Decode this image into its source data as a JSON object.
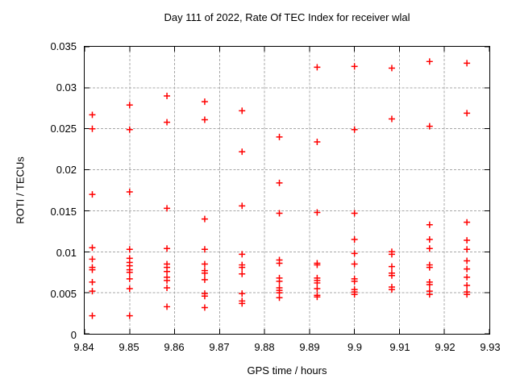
{
  "title": "Day 111 of 2022, Rate Of TEC Index for receiver wlal",
  "chart_data": {
    "type": "scatter",
    "title": "Day 111 of 2022, Rate Of TEC Index for receiver wlal",
    "xlabel": "GPS time / hours",
    "ylabel": "ROTI / TECUs",
    "xlim": [
      9.84,
      9.93
    ],
    "ylim": [
      0,
      0.035
    ],
    "x_ticks": [
      9.84,
      9.85,
      9.86,
      9.87,
      9.88,
      9.89,
      9.9,
      9.91,
      9.92,
      9.93
    ],
    "x_tick_labels": [
      "9.84",
      "9.85",
      "9.86",
      "9.87",
      "9.88",
      "9.89",
      "9.9",
      "9.91",
      "9.92",
      "9.93"
    ],
    "y_ticks": [
      0,
      0.005,
      0.01,
      0.015,
      0.02,
      0.025,
      0.03,
      0.035
    ],
    "y_tick_labels": [
      "0",
      "0.005",
      "0.01",
      "0.015",
      "0.02",
      "0.025",
      "0.03",
      "0.035"
    ],
    "grid": true,
    "legend": "none",
    "marker": {
      "shape": "plus",
      "color": "#ff0000",
      "size": 4,
      "stroke_width": 1.5
    },
    "grid_color": "#a8a8a8",
    "border_color": "#000000",
    "series": [
      {
        "name": "ROTI",
        "points": [
          [
            9.8417,
            0.0267
          ],
          [
            9.8417,
            0.025
          ],
          [
            9.8417,
            0.017
          ],
          [
            9.8417,
            0.0105
          ],
          [
            9.8417,
            0.0091
          ],
          [
            9.8417,
            0.0081
          ],
          [
            9.8417,
            0.0078
          ],
          [
            9.8417,
            0.0063
          ],
          [
            9.8417,
            0.0052
          ],
          [
            9.8417,
            0.0022
          ],
          [
            9.85,
            0.0279
          ],
          [
            9.85,
            0.0249
          ],
          [
            9.85,
            0.0173
          ],
          [
            9.85,
            0.0103
          ],
          [
            9.85,
            0.0092
          ],
          [
            9.85,
            0.0087
          ],
          [
            9.85,
            0.0083
          ],
          [
            9.85,
            0.0078
          ],
          [
            9.85,
            0.0075
          ],
          [
            9.85,
            0.0067
          ],
          [
            9.85,
            0.0055
          ],
          [
            9.85,
            0.0022
          ],
          [
            9.8583,
            0.029
          ],
          [
            9.8583,
            0.0258
          ],
          [
            9.8583,
            0.0153
          ],
          [
            9.8583,
            0.0104
          ],
          [
            9.8583,
            0.0085
          ],
          [
            9.8583,
            0.0081
          ],
          [
            9.8583,
            0.0076
          ],
          [
            9.8583,
            0.0069
          ],
          [
            9.8583,
            0.0065
          ],
          [
            9.8583,
            0.0056
          ],
          [
            9.8583,
            0.0033
          ],
          [
            9.8667,
            0.0283
          ],
          [
            9.8667,
            0.0261
          ],
          [
            9.8667,
            0.014
          ],
          [
            9.8667,
            0.0103
          ],
          [
            9.8667,
            0.0085
          ],
          [
            9.8667,
            0.0077
          ],
          [
            9.8667,
            0.0074
          ],
          [
            9.8667,
            0.0066
          ],
          [
            9.8667,
            0.0049
          ],
          [
            9.8667,
            0.0046
          ],
          [
            9.8667,
            0.0032
          ],
          [
            9.875,
            0.0272
          ],
          [
            9.875,
            0.0222
          ],
          [
            9.875,
            0.0156
          ],
          [
            9.875,
            0.0097
          ],
          [
            9.875,
            0.0084
          ],
          [
            9.875,
            0.0081
          ],
          [
            9.875,
            0.0073
          ],
          [
            9.875,
            0.0049
          ],
          [
            9.875,
            0.004
          ],
          [
            9.875,
            0.0037
          ],
          [
            9.8833,
            0.024
          ],
          [
            9.8833,
            0.0184
          ],
          [
            9.8833,
            0.0147
          ],
          [
            9.8833,
            0.009
          ],
          [
            9.8833,
            0.0086
          ],
          [
            9.8833,
            0.0068
          ],
          [
            9.8833,
            0.0064
          ],
          [
            9.8833,
            0.0056
          ],
          [
            9.8833,
            0.0053
          ],
          [
            9.8833,
            0.005
          ],
          [
            9.8833,
            0.0044
          ],
          [
            9.8917,
            0.0325
          ],
          [
            9.8917,
            0.0234
          ],
          [
            9.8917,
            0.0148
          ],
          [
            9.8917,
            0.0086
          ],
          [
            9.8917,
            0.0084
          ],
          [
            9.8917,
            0.0068
          ],
          [
            9.8917,
            0.0065
          ],
          [
            9.8917,
            0.0062
          ],
          [
            9.8917,
            0.0055
          ],
          [
            9.8917,
            0.0047
          ],
          [
            9.8917,
            0.0045
          ],
          [
            9.9,
            0.0326
          ],
          [
            9.9,
            0.0249
          ],
          [
            9.9,
            0.0147
          ],
          [
            9.9,
            0.0115
          ],
          [
            9.9,
            0.0098
          ],
          [
            9.9,
            0.0085
          ],
          [
            9.9,
            0.0067
          ],
          [
            9.9,
            0.0064
          ],
          [
            9.9,
            0.0054
          ],
          [
            9.9,
            0.0051
          ],
          [
            9.9,
            0.0048
          ],
          [
            9.9083,
            0.0324
          ],
          [
            9.9083,
            0.0262
          ],
          [
            9.9083,
            0.01
          ],
          [
            9.9083,
            0.0097
          ],
          [
            9.9083,
            0.0082
          ],
          [
            9.9083,
            0.0074
          ],
          [
            9.9083,
            0.0071
          ],
          [
            9.9083,
            0.0057
          ],
          [
            9.9083,
            0.0054
          ],
          [
            9.9167,
            0.0332
          ],
          [
            9.9167,
            0.0253
          ],
          [
            9.9167,
            0.0133
          ],
          [
            9.9167,
            0.0115
          ],
          [
            9.9167,
            0.0104
          ],
          [
            9.9167,
            0.0084
          ],
          [
            9.9167,
            0.0081
          ],
          [
            9.9167,
            0.0063
          ],
          [
            9.9167,
            0.006
          ],
          [
            9.9167,
            0.0052
          ],
          [
            9.9167,
            0.0048
          ],
          [
            9.925,
            0.033
          ],
          [
            9.925,
            0.0269
          ],
          [
            9.925,
            0.0136
          ],
          [
            9.925,
            0.0114
          ],
          [
            9.925,
            0.0103
          ],
          [
            9.925,
            0.0089
          ],
          [
            9.925,
            0.0079
          ],
          [
            9.925,
            0.0069
          ],
          [
            9.925,
            0.0059
          ],
          [
            9.925,
            0.0051
          ],
          [
            9.925,
            0.0048
          ]
        ]
      }
    ]
  }
}
